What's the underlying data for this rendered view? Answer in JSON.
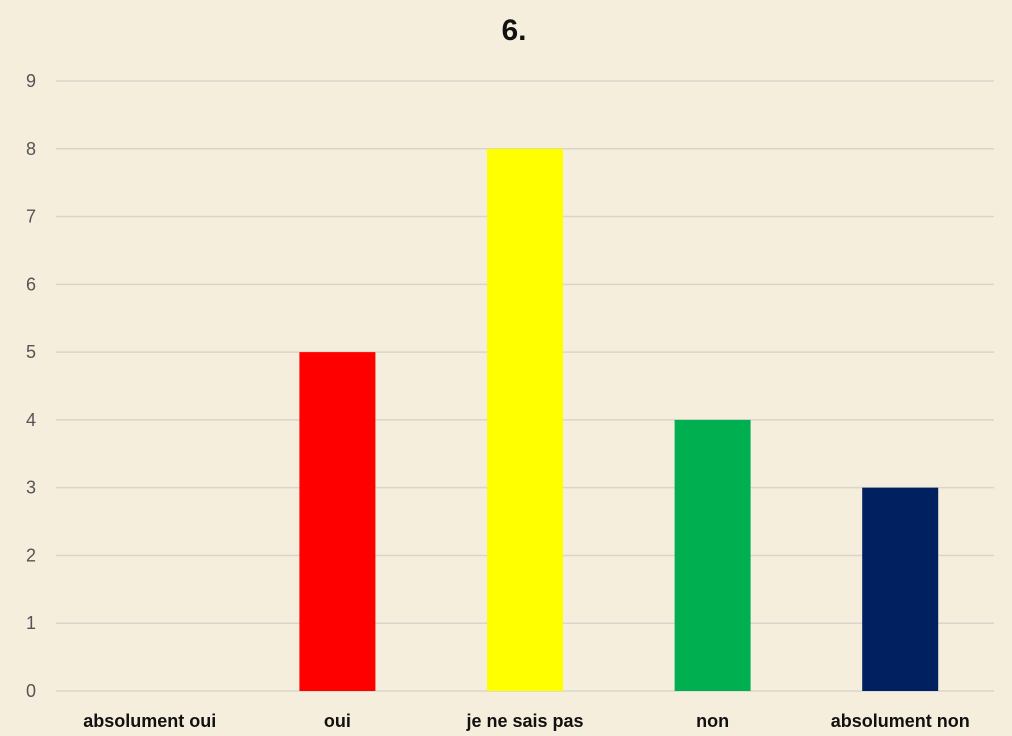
{
  "chart_data": {
    "type": "bar",
    "title": "6.",
    "categories": [
      "absolument oui",
      "oui",
      "je ne sais pas",
      "non",
      "absolument non"
    ],
    "values": [
      0,
      5,
      8,
      4,
      3
    ],
    "colors": [
      "#ff0000",
      "#ff0000",
      "#ffff00",
      "#00b050",
      "#002060"
    ],
    "ylim": [
      0,
      9
    ],
    "yticks": [
      "0",
      "1",
      "2",
      "3",
      "4",
      "5",
      "6",
      "7",
      "8",
      "9"
    ],
    "grid": true,
    "legend": "none",
    "xlabel": "",
    "ylabel": ""
  }
}
